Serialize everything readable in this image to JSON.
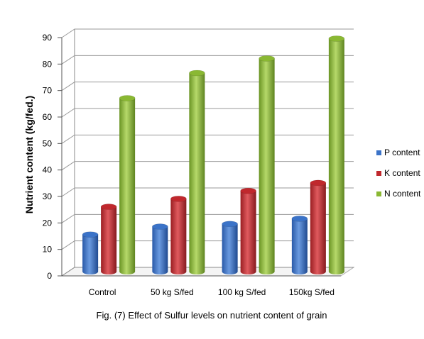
{
  "chart_data": {
    "type": "bar",
    "style": "3d-cylinder",
    "categories": [
      "Control",
      "50 kg S/fed",
      "100 kg S/fed",
      "150kg S/fed"
    ],
    "series": [
      {
        "name": "P content",
        "values": [
          14,
          17,
          18,
          20
        ],
        "color": "#3b73c8"
      },
      {
        "name": "K content",
        "values": [
          24.5,
          27.5,
          30.5,
          33.5
        ],
        "color": "#c0282d"
      },
      {
        "name": "N content",
        "values": [
          65.5,
          75,
          80.5,
          88
        ],
        "color": "#8ab833"
      }
    ],
    "ylabel": "Nutrient content (kg/fed.)",
    "ylim": [
      0,
      90
    ],
    "yticks": [
      0,
      10,
      20,
      30,
      40,
      50,
      60,
      70,
      80,
      90
    ],
    "grid": true,
    "legend_position": "right",
    "caption": "Fig. (7) Effect of Sulfur levels on nutrient content of grain"
  }
}
